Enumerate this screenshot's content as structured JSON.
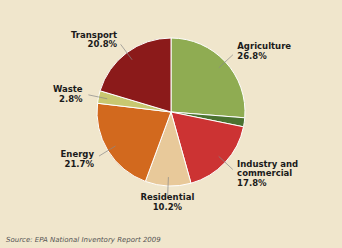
{
  "chart_data": {
    "type": "pie",
    "categories": [
      "Agriculture",
      null,
      "Industry and\ncommercial",
      "Residential",
      "Energy",
      "Waste",
      "Transport"
    ],
    "values": [
      26.8,
      2.0,
      17.8,
      10.2,
      21.7,
      2.8,
      20.8
    ],
    "value_labels": [
      "26.8%",
      null,
      "17.8%",
      "10.2%",
      "21.7%",
      "2.8%",
      "20.8%"
    ],
    "colors": [
      "#8fac52",
      "#4a7230",
      "#cc3333",
      "#e8c99a",
      "#d2691e",
      "#c8c870",
      "#8b1a1a"
    ],
    "data_labels": true,
    "annotations": [
      "Source: EPA National Inventory Report 2009"
    ]
  }
}
